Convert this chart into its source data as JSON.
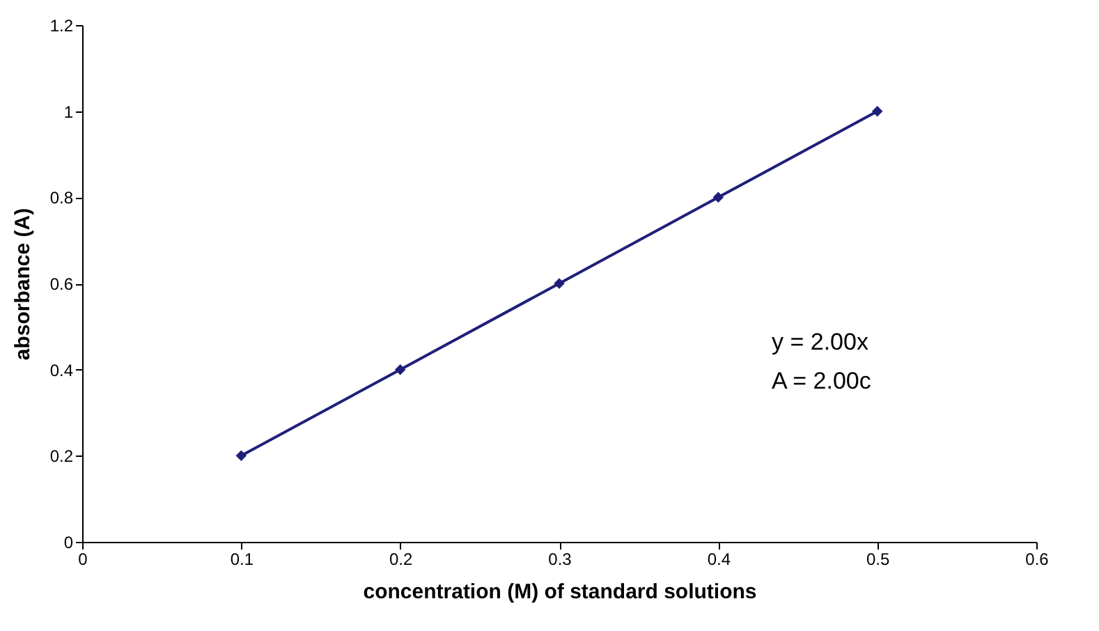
{
  "chart_data": {
    "type": "line",
    "xlabel": "concentration (M) of standard solutions",
    "ylabel": "absorbance (A)",
    "x": [
      0.1,
      0.2,
      0.3,
      0.4,
      0.5
    ],
    "series": [
      {
        "color": "#1f1f7a",
        "values": [
          0.2,
          0.4,
          0.6,
          0.8,
          1.0
        ]
      }
    ],
    "xlim": [
      0,
      0.6
    ],
    "xticks": [
      0,
      0.1,
      0.2,
      0.3,
      0.4,
      0.5,
      0.6
    ],
    "ylim": [
      0,
      1.2
    ],
    "yticks": [
      0,
      0.2,
      0.4,
      0.6,
      0.8,
      1,
      1.2
    ],
    "marker": "diamond",
    "annotations": [
      "y = 2.00x",
      "A = 2.00c"
    ]
  }
}
